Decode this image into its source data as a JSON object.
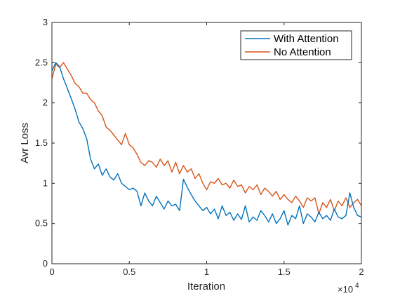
{
  "chart_data": {
    "type": "line",
    "title": "",
    "xlabel": "Iteration",
    "ylabel": "Avr Loss",
    "x_exponent_label": "×10",
    "x_exponent_power": "4",
    "xlim": [
      0,
      20000
    ],
    "ylim": [
      0,
      3
    ],
    "x_ticks": [
      0,
      5000,
      10000,
      15000,
      20000
    ],
    "x_tick_labels": [
      "0",
      "0.5",
      "1",
      "1.5",
      "2"
    ],
    "y_ticks": [
      0,
      0.5,
      1,
      1.5,
      2,
      2.5,
      3
    ],
    "y_tick_labels": [
      "0",
      "0.5",
      "1",
      "1.5",
      "2",
      "2.5",
      "3"
    ],
    "grid": false,
    "legend_position": "top-right",
    "series": [
      {
        "name": "With Attention",
        "color": "#0072BD",
        "x": [
          0,
          250,
          500,
          750,
          1000,
          1250,
          1500,
          1750,
          2000,
          2250,
          2500,
          2750,
          3000,
          3250,
          3500,
          3750,
          4000,
          4250,
          4500,
          4750,
          5000,
          5250,
          5500,
          5750,
          6000,
          6250,
          6500,
          6750,
          7000,
          7250,
          7500,
          7750,
          8000,
          8250,
          8500,
          8750,
          9000,
          9250,
          9500,
          9750,
          10000,
          10250,
          10500,
          10750,
          11000,
          11250,
          11500,
          11750,
          12000,
          12250,
          12500,
          12750,
          13000,
          13250,
          13500,
          13750,
          14000,
          14250,
          14500,
          14750,
          15000,
          15250,
          15500,
          15750,
          16000,
          16250,
          16500,
          16750,
          17000,
          17250,
          17500,
          17750,
          18000,
          18250,
          18500,
          18750,
          19000,
          19250,
          19500,
          19750,
          20000
        ],
        "values": [
          2.4,
          2.5,
          2.45,
          2.3,
          2.18,
          2.05,
          1.92,
          1.76,
          1.68,
          1.55,
          1.3,
          1.18,
          1.24,
          1.1,
          1.18,
          1.08,
          1.04,
          1.12,
          1.0,
          0.96,
          0.92,
          0.94,
          0.9,
          0.72,
          0.88,
          0.78,
          0.72,
          0.84,
          0.76,
          0.68,
          0.78,
          0.72,
          0.74,
          0.66,
          1.05,
          0.95,
          0.86,
          0.78,
          0.72,
          0.66,
          0.7,
          0.62,
          0.68,
          0.56,
          0.72,
          0.6,
          0.64,
          0.54,
          0.62,
          0.55,
          0.72,
          0.52,
          0.58,
          0.54,
          0.66,
          0.6,
          0.52,
          0.62,
          0.5,
          0.56,
          0.66,
          0.48,
          0.6,
          0.56,
          0.72,
          0.5,
          0.62,
          0.58,
          0.52,
          0.64,
          0.56,
          0.6,
          0.54,
          0.68,
          0.58,
          0.56,
          0.6,
          0.88,
          0.7,
          0.6,
          0.58
        ]
      },
      {
        "name": "No Attention",
        "color": "#D95319",
        "x": [
          0,
          250,
          500,
          750,
          1000,
          1250,
          1500,
          1750,
          2000,
          2250,
          2500,
          2750,
          3000,
          3250,
          3500,
          3750,
          4000,
          4250,
          4500,
          4750,
          5000,
          5250,
          5500,
          5750,
          6000,
          6250,
          6500,
          6750,
          7000,
          7250,
          7500,
          7750,
          8000,
          8250,
          8500,
          8750,
          9000,
          9250,
          9500,
          9750,
          10000,
          10250,
          10500,
          10750,
          11000,
          11250,
          11500,
          11750,
          12000,
          12250,
          12500,
          12750,
          13000,
          13250,
          13500,
          13750,
          14000,
          14250,
          14500,
          14750,
          15000,
          15250,
          15500,
          15750,
          16000,
          16250,
          16500,
          16750,
          17000,
          17250,
          17500,
          17750,
          18000,
          18250,
          18500,
          18750,
          19000,
          19250,
          19500,
          19750,
          20000
        ],
        "values": [
          2.3,
          2.48,
          2.44,
          2.5,
          2.42,
          2.34,
          2.24,
          2.2,
          2.12,
          2.12,
          2.04,
          2.0,
          1.9,
          1.84,
          1.7,
          1.66,
          1.6,
          1.54,
          1.48,
          1.62,
          1.48,
          1.44,
          1.36,
          1.26,
          1.22,
          1.28,
          1.26,
          1.2,
          1.3,
          1.22,
          1.28,
          1.14,
          1.26,
          1.12,
          1.22,
          1.14,
          1.18,
          1.06,
          1.12,
          1.0,
          0.92,
          1.02,
          1.0,
          1.06,
          0.98,
          1.0,
          0.94,
          1.04,
          0.96,
          0.98,
          0.88,
          0.96,
          0.92,
          0.98,
          0.86,
          0.94,
          0.9,
          0.84,
          0.9,
          0.8,
          0.86,
          0.8,
          0.76,
          0.84,
          0.78,
          0.7,
          0.82,
          0.78,
          0.82,
          0.62,
          0.76,
          0.7,
          0.8,
          0.66,
          0.78,
          0.72,
          0.82,
          0.7,
          0.76,
          0.8,
          0.72
        ]
      }
    ]
  }
}
